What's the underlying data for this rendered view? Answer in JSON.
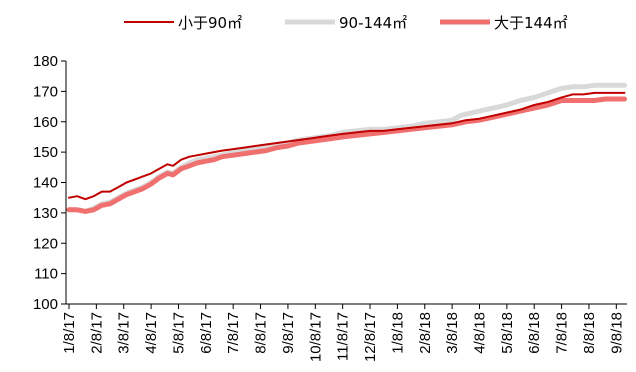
{
  "chart_data": {
    "type": "line",
    "title": "",
    "xlabel": "",
    "ylabel": "",
    "ylim": [
      100,
      180
    ],
    "yticks": [
      100,
      110,
      120,
      130,
      140,
      150,
      160,
      170,
      180
    ],
    "x_tick_labels": [
      "1/8/17",
      "2/8/17",
      "3/8/17",
      "4/8/17",
      "5/8/17",
      "6/8/17",
      "7/8/17",
      "8/8/17",
      "9/8/17",
      "10/8/17",
      "11/8/17",
      "12/8/17",
      "1/8/18",
      "2/8/18",
      "3/8/18",
      "4/8/18",
      "5/8/18",
      "6/8/18",
      "7/8/18",
      "8/8/18",
      "9/8/18"
    ],
    "grid": false,
    "legend_position": "top",
    "series": [
      {
        "name": "小于90㎡",
        "color": "#c00000",
        "values": [
          [
            0,
            135.0
          ],
          [
            0.3,
            135.5
          ],
          [
            0.6,
            134.5
          ],
          [
            0.9,
            135.5
          ],
          [
            1.2,
            137.0
          ],
          [
            1.5,
            137.0
          ],
          [
            1.8,
            138.5
          ],
          [
            2.1,
            140.0
          ],
          [
            2.4,
            141.0
          ],
          [
            2.7,
            142.0
          ],
          [
            3.0,
            143.0
          ],
          [
            3.3,
            144.5
          ],
          [
            3.6,
            146.0
          ],
          [
            3.8,
            145.5
          ],
          [
            4.1,
            147.5
          ],
          [
            4.4,
            148.5
          ],
          [
            4.7,
            149.0
          ],
          [
            5.0,
            149.5
          ],
          [
            5.3,
            150.0
          ],
          [
            5.6,
            150.5
          ],
          [
            6.0,
            151.0
          ],
          [
            6.4,
            151.5
          ],
          [
            6.8,
            152.0
          ],
          [
            7.2,
            152.5
          ],
          [
            7.6,
            153.0
          ],
          [
            8.0,
            153.5
          ],
          [
            8.4,
            154.0
          ],
          [
            8.8,
            154.5
          ],
          [
            9.2,
            155.0
          ],
          [
            9.6,
            155.5
          ],
          [
            10.0,
            156.0
          ],
          [
            10.5,
            156.5
          ],
          [
            11.0,
            157.0
          ],
          [
            11.5,
            157.0
          ],
          [
            12.0,
            157.5
          ],
          [
            12.5,
            158.0
          ],
          [
            13.0,
            158.5
          ],
          [
            13.5,
            159.0
          ],
          [
            14.0,
            159.5
          ],
          [
            14.5,
            160.5
          ],
          [
            15.0,
            161.0
          ],
          [
            15.5,
            162.0
          ],
          [
            16.0,
            163.0
          ],
          [
            16.5,
            164.0
          ],
          [
            17.0,
            165.5
          ],
          [
            17.5,
            166.5
          ],
          [
            18.0,
            168.0
          ],
          [
            18.4,
            169.0
          ],
          [
            18.8,
            169.0
          ],
          [
            19.2,
            169.5
          ],
          [
            19.6,
            169.5
          ],
          [
            20.0,
            169.5
          ],
          [
            20.3,
            169.5
          ]
        ]
      },
      {
        "name": "90-144㎡",
        "color": "#d9d9d9",
        "values": [
          [
            0,
            131.0
          ],
          [
            0.3,
            131.0
          ],
          [
            0.6,
            130.5
          ],
          [
            0.9,
            131.5
          ],
          [
            1.2,
            133.0
          ],
          [
            1.5,
            133.5
          ],
          [
            1.8,
            135.0
          ],
          [
            2.1,
            136.5
          ],
          [
            2.4,
            137.5
          ],
          [
            2.7,
            138.5
          ],
          [
            3.0,
            140.0
          ],
          [
            3.3,
            142.0
          ],
          [
            3.6,
            143.5
          ],
          [
            3.8,
            143.0
          ],
          [
            4.1,
            145.0
          ],
          [
            4.4,
            146.5
          ],
          [
            4.7,
            147.5
          ],
          [
            5.0,
            148.0
          ],
          [
            5.3,
            148.5
          ],
          [
            5.6,
            149.0
          ],
          [
            6.0,
            150.0
          ],
          [
            6.4,
            150.5
          ],
          [
            6.8,
            151.0
          ],
          [
            7.2,
            151.5
          ],
          [
            7.6,
            152.5
          ],
          [
            8.0,
            153.0
          ],
          [
            8.4,
            154.0
          ],
          [
            8.8,
            154.5
          ],
          [
            9.2,
            155.0
          ],
          [
            9.6,
            155.5
          ],
          [
            10.0,
            156.5
          ],
          [
            10.5,
            157.0
          ],
          [
            11.0,
            157.5
          ],
          [
            11.5,
            157.5
          ],
          [
            12.0,
            158.0
          ],
          [
            12.5,
            158.5
          ],
          [
            13.0,
            159.5
          ],
          [
            13.5,
            160.0
          ],
          [
            14.0,
            160.5
          ],
          [
            14.3,
            162.0
          ],
          [
            14.5,
            162.5
          ],
          [
            15.0,
            163.5
          ],
          [
            15.5,
            164.5
          ],
          [
            16.0,
            165.5
          ],
          [
            16.5,
            167.0
          ],
          [
            17.0,
            168.0
          ],
          [
            17.5,
            169.5
          ],
          [
            18.0,
            171.0
          ],
          [
            18.4,
            171.5
          ],
          [
            18.8,
            171.5
          ],
          [
            19.2,
            172.0
          ],
          [
            19.6,
            172.0
          ],
          [
            20.0,
            172.0
          ],
          [
            20.3,
            172.0
          ]
        ]
      },
      {
        "name": "大于144㎡",
        "color": "#f07070",
        "values": [
          [
            0,
            131.0
          ],
          [
            0.3,
            131.0
          ],
          [
            0.6,
            130.5
          ],
          [
            0.9,
            131.0
          ],
          [
            1.2,
            132.5
          ],
          [
            1.5,
            133.0
          ],
          [
            1.8,
            134.5
          ],
          [
            2.1,
            136.0
          ],
          [
            2.4,
            137.0
          ],
          [
            2.7,
            138.0
          ],
          [
            3.0,
            139.5
          ],
          [
            3.3,
            141.5
          ],
          [
            3.6,
            143.0
          ],
          [
            3.8,
            142.5
          ],
          [
            4.1,
            144.5
          ],
          [
            4.4,
            145.5
          ],
          [
            4.7,
            146.5
          ],
          [
            5.0,
            147.0
          ],
          [
            5.3,
            147.5
          ],
          [
            5.6,
            148.5
          ],
          [
            6.0,
            149.0
          ],
          [
            6.4,
            149.5
          ],
          [
            6.8,
            150.0
          ],
          [
            7.2,
            150.5
          ],
          [
            7.6,
            151.5
          ],
          [
            8.0,
            152.0
          ],
          [
            8.4,
            153.0
          ],
          [
            8.8,
            153.5
          ],
          [
            9.2,
            154.0
          ],
          [
            9.6,
            154.5
          ],
          [
            10.0,
            155.0
          ],
          [
            10.5,
            155.5
          ],
          [
            11.0,
            156.0
          ],
          [
            11.5,
            156.5
          ],
          [
            12.0,
            157.0
          ],
          [
            12.5,
            157.5
          ],
          [
            13.0,
            158.0
          ],
          [
            13.5,
            158.5
          ],
          [
            14.0,
            159.0
          ],
          [
            14.5,
            160.0
          ],
          [
            15.0,
            160.5
          ],
          [
            15.5,
            161.5
          ],
          [
            16.0,
            162.5
          ],
          [
            16.5,
            163.5
          ],
          [
            17.0,
            164.5
          ],
          [
            17.5,
            165.5
          ],
          [
            18.0,
            167.0
          ],
          [
            18.4,
            167.0
          ],
          [
            18.8,
            167.0
          ],
          [
            19.2,
            167.0
          ],
          [
            19.6,
            167.5
          ],
          [
            20.0,
            167.5
          ],
          [
            20.3,
            167.5
          ]
        ]
      }
    ]
  }
}
